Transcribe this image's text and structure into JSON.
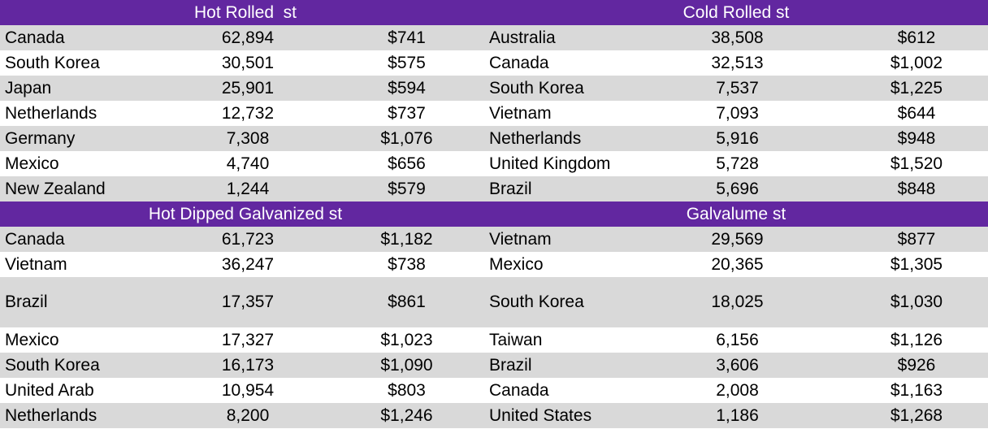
{
  "colors": {
    "header_bg": "#6227a0",
    "header_text": "#ffffff",
    "row_gray": "#d9d9d9",
    "row_white": "#ffffff"
  },
  "sections": [
    {
      "left_title": "Hot Rolled  st",
      "right_title": "Cold Rolled st",
      "rows": [
        {
          "l": [
            "Canada",
            "62,894",
            "$741"
          ],
          "r": [
            "Australia",
            "38,508",
            "$612"
          ]
        },
        {
          "l": [
            "South Korea",
            "30,501",
            "$575"
          ],
          "r": [
            "Canada",
            "32,513",
            "$1,002"
          ]
        },
        {
          "l": [
            "Japan",
            "25,901",
            "$594"
          ],
          "r": [
            "South Korea",
            "7,537",
            "$1,225"
          ]
        },
        {
          "l": [
            "Netherlands",
            "12,732",
            "$737"
          ],
          "r": [
            "Vietnam",
            "7,093",
            "$644"
          ]
        },
        {
          "l": [
            "Germany",
            "7,308",
            "$1,076"
          ],
          "r": [
            "Netherlands",
            "5,916",
            "$948"
          ]
        },
        {
          "l": [
            "Mexico",
            "4,740",
            "$656"
          ],
          "r": [
            "United Kingdom",
            "5,728",
            "$1,520"
          ]
        },
        {
          "l": [
            "New Zealand",
            "1,244",
            "$579"
          ],
          "r": [
            "Brazil",
            "5,696",
            "$848"
          ]
        }
      ]
    },
    {
      "left_title": "Hot Dipped Galvanized st",
      "right_title": "Galvalume st",
      "rows": [
        {
          "l": [
            "Canada",
            "61,723",
            "$1,182"
          ],
          "r": [
            "Vietnam",
            "29,569",
            "$877"
          ]
        },
        {
          "l": [
            "Vietnam",
            "36,247",
            "$738"
          ],
          "r": [
            "Mexico",
            "20,365",
            "$1,305"
          ]
        },
        {
          "l": [
            "Brazil",
            "17,357",
            "$861"
          ],
          "r": [
            "South Korea",
            "18,025",
            "$1,030"
          ]
        },
        {
          "l": [
            "Mexico",
            "17,327",
            "$1,023"
          ],
          "r": [
            "Taiwan",
            "6,156",
            "$1,126"
          ]
        },
        {
          "l": [
            "South Korea",
            "16,173",
            "$1,090"
          ],
          "r": [
            "Brazil",
            "3,606",
            "$926"
          ]
        },
        {
          "l": [
            "United Arab",
            "10,954",
            "$803"
          ],
          "r": [
            "Canada",
            "2,008",
            "$1,163"
          ]
        },
        {
          "l": [
            "Netherlands",
            "8,200",
            "$1,246"
          ],
          "r": [
            "United States",
            "1,186",
            "$1,268"
          ]
        }
      ]
    }
  ]
}
